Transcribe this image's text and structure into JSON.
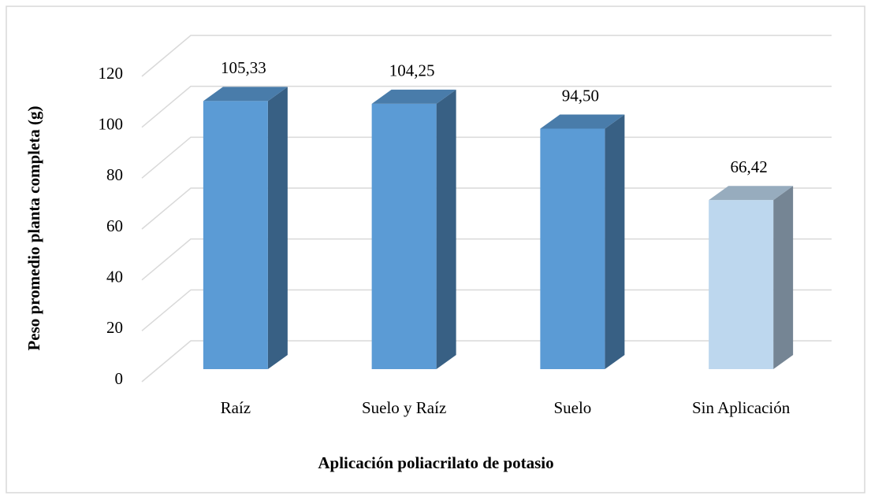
{
  "chart_data": {
    "type": "bar3d",
    "x_label": "Aplicación poliacrilato de potasio",
    "y_label": "Peso promedio planta completa (g)",
    "categories": [
      "Raíz",
      "Suelo y Raíz",
      "Suelo",
      "Sin Aplicación"
    ],
    "values": [
      105.33,
      104.25,
      94.5,
      66.42
    ],
    "value_labels": [
      "105,33",
      "104,25",
      "94,50",
      "66,42"
    ],
    "colors": [
      "#5b9bd5",
      "#5b9bd5",
      "#5b9bd5",
      "#bdd7ee"
    ],
    "ylim": [
      0,
      120
    ],
    "yticks": [
      0,
      20,
      40,
      60,
      80,
      100,
      120
    ],
    "grid": true
  }
}
